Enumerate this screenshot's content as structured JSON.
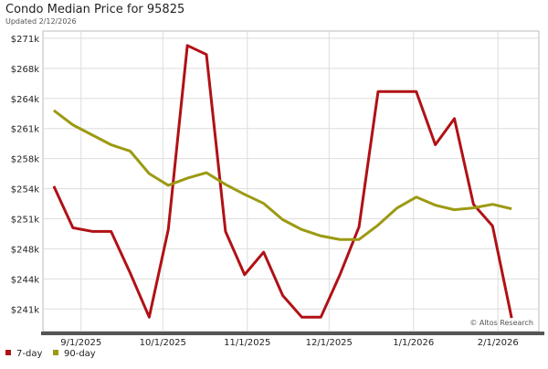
{
  "chart_data": {
    "type": "line",
    "title": "Condo Median Price for 95825",
    "subtitle": "Updated 2/12/2026",
    "annotation": "© Altos Research",
    "x": [
      "8/22/2025",
      "8/29/2025",
      "9/5/2025",
      "9/12/2025",
      "9/19/2025",
      "9/26/2025",
      "10/3/2025",
      "10/10/2025",
      "10/17/2025",
      "10/24/2025",
      "10/31/2025",
      "11/7/2025",
      "11/14/2025",
      "11/21/2025",
      "11/28/2025",
      "12/5/2025",
      "12/12/2025",
      "12/19/2025",
      "12/26/2025",
      "1/2/2026",
      "1/9/2026",
      "1/16/2026",
      "1/23/2026",
      "1/30/2026",
      "2/6/2026"
    ],
    "series": [
      {
        "name": "7-day",
        "color": "#b01116",
        "values": [
          254600,
          250000,
          249600,
          249600,
          245000,
          240100,
          249800,
          270200,
          269200,
          249600,
          244800,
          247300,
          242500,
          240100,
          240100,
          244800,
          250100,
          265100,
          265100,
          265100,
          259200,
          262100,
          252600,
          250200,
          240000
        ]
      },
      {
        "name": "90-day",
        "color": "#9c9a12",
        "values": [
          263000,
          261400,
          260300,
          259200,
          258500,
          256000,
          254700,
          255500,
          256100,
          254800,
          253700,
          252700,
          250900,
          249800,
          249100,
          248700,
          248700,
          250300,
          252200,
          253400,
          252500,
          252000,
          252200,
          252600,
          252100
        ]
      }
    ],
    "xlim": [
      "8/18/2025",
      "2/16/2026"
    ],
    "xticks": [
      "9/1/2025",
      "10/1/2025",
      "11/1/2025",
      "12/1/2025",
      "1/1/2026",
      "2/1/2026"
    ],
    "ylim": [
      238500,
      271800
    ],
    "yticks": [
      {
        "value": 241000,
        "label": "$241k"
      },
      {
        "value": 244333,
        "label": "$244k"
      },
      {
        "value": 247667,
        "label": "$248k"
      },
      {
        "value": 251000,
        "label": "$251k"
      },
      {
        "value": 254333,
        "label": "$254k"
      },
      {
        "value": 257667,
        "label": "$258k"
      },
      {
        "value": 261000,
        "label": "$261k"
      },
      {
        "value": 264333,
        "label": "$264k"
      },
      {
        "value": 267667,
        "label": "$268k"
      },
      {
        "value": 271000,
        "label": "$271k"
      }
    ],
    "grid": true,
    "legend": "bottom-left"
  }
}
